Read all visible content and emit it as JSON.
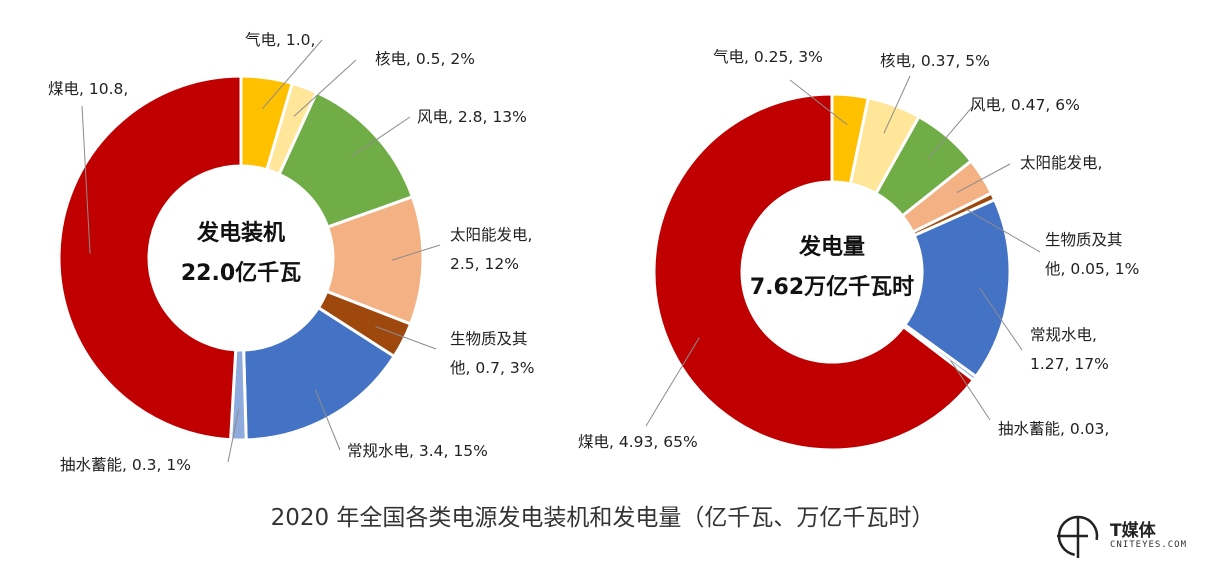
{
  "caption": "2020 年全国各类电源发电装机和发电量（亿千瓦、万亿千瓦时）",
  "logo": {
    "name": "T媒体",
    "domain": "CNITEYES.COM"
  },
  "chart_data": [
    {
      "type": "pie",
      "center_title": "发电装机",
      "center_value": "22.0亿千瓦",
      "categories": [
        "气电",
        "核电",
        "风电",
        "太阳能发电",
        "生物质及其他",
        "常规水电",
        "抽水蓄能",
        "煤电"
      ],
      "values": [
        1.0,
        0.5,
        2.8,
        2.5,
        0.7,
        3.4,
        0.3,
        10.8
      ],
      "labels": [
        [
          "气电, 1.0,"
        ],
        [
          "核电, 0.5, 2%"
        ],
        [
          "风电, 2.8, 13%"
        ],
        [
          "太阳能发电,",
          "2.5, 12%"
        ],
        [
          "生物质及其",
          "他, 0.7, 3%"
        ],
        [
          "常规水电, 3.4, 15%"
        ],
        [
          "抽水蓄能, 0.3, 1%"
        ],
        [
          "煤电, 10.8,"
        ]
      ],
      "colors": [
        "#FFC000",
        "#FFE699",
        "#70AD47",
        "#F4B183",
        "#9E480E",
        "#4472C4",
        "#8FAADC",
        "#C00000"
      ]
    },
    {
      "type": "pie",
      "center_title": "发电量",
      "center_value": "7.62万亿千瓦时",
      "categories": [
        "气电",
        "核电",
        "风电",
        "太阳能发电",
        "生物质及其他",
        "常规水电",
        "抽水蓄能",
        "煤电"
      ],
      "values": [
        0.25,
        0.37,
        0.47,
        0.26,
        0.05,
        1.27,
        0.03,
        4.93
      ],
      "labels": [
        [
          "气电, 0.25, 3%"
        ],
        [
          "核电, 0.37, 5%"
        ],
        [
          "风电, 0.47, 6%"
        ],
        [
          "太阳能发电,"
        ],
        [
          "生物质及其",
          "他, 0.05, 1%"
        ],
        [
          "常规水电,",
          "1.27, 17%"
        ],
        [
          "抽水蓄能, 0.03,"
        ],
        [
          "煤电, 4.93, 65%"
        ]
      ],
      "colors": [
        "#FFC000",
        "#FFE699",
        "#70AD47",
        "#F4B183",
        "#9E480E",
        "#4472C4",
        "#8FAADC",
        "#C00000"
      ]
    }
  ]
}
